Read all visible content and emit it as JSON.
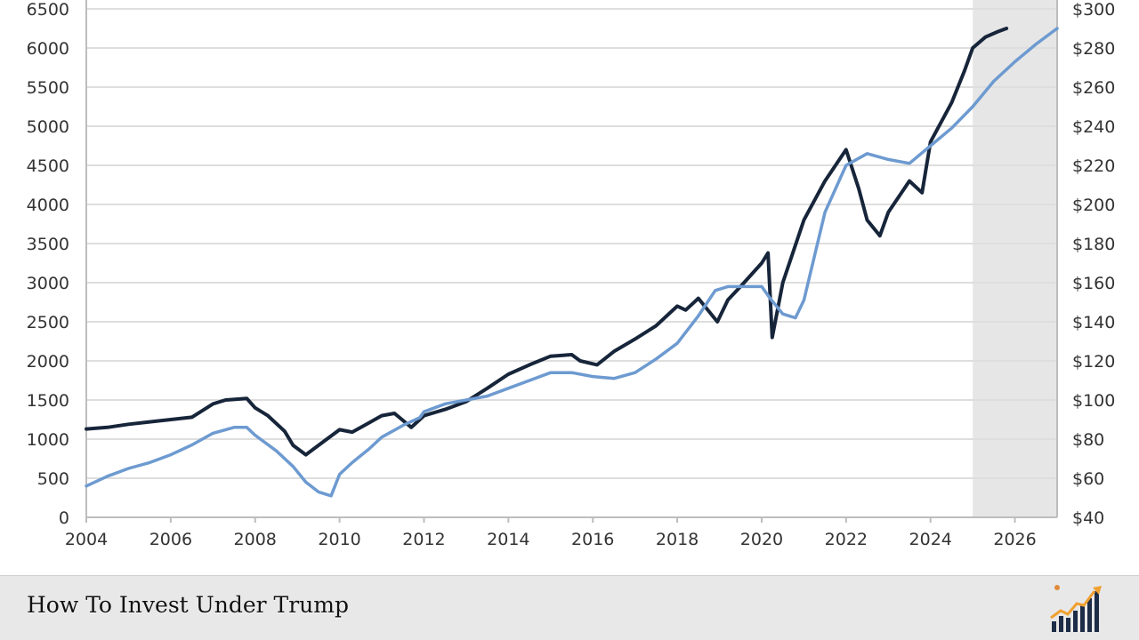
{
  "footer": {
    "title": "How To Invest Under Trump"
  },
  "colors": {
    "index_line": "#17253a",
    "earnings_line": "#6d9ad0",
    "grid": "#dedede",
    "forecast_shade": "#e6e6e6",
    "axis": "#bdbdbd"
  },
  "icons": {
    "logo": "rising-chart-bars-logo"
  },
  "chart_data": {
    "type": "line",
    "title": "",
    "xlabel": "",
    "ylabel_left": "",
    "ylabel_right": "",
    "xlim": [
      2004,
      2027
    ],
    "ylim_left": [
      0,
      6500
    ],
    "ylim_right": [
      40,
      300
    ],
    "x_ticks": [
      "2004",
      "2006",
      "2008",
      "2010",
      "2012",
      "2014",
      "2016",
      "2018",
      "2020",
      "2022",
      "2024",
      "2026"
    ],
    "y_ticks_left": [
      "0",
      "500",
      "1000",
      "1500",
      "2000",
      "2500",
      "3000",
      "3500",
      "4000",
      "4500",
      "5000",
      "5500",
      "6000",
      "6500"
    ],
    "y_ticks_right": [
      "$40",
      "$60",
      "$80",
      "$100",
      "$120",
      "$140",
      "$160",
      "$180",
      "$200",
      "$220",
      "$240",
      "$260",
      "$280",
      "$300"
    ],
    "grid": true,
    "legend": "none",
    "shaded_region": {
      "x_start": 2025.0,
      "x_end": 2027.0
    },
    "series": [
      {
        "axis": "left",
        "color": "#17253a",
        "x": [
          2004.0,
          2004.5,
          2005.0,
          2005.5,
          2006.0,
          2006.5,
          2007.0,
          2007.3,
          2007.8,
          2008.0,
          2008.3,
          2008.7,
          2008.9,
          2009.2,
          2009.5,
          2010.0,
          2010.3,
          2010.6,
          2011.0,
          2011.3,
          2011.7,
          2011.8,
          2012.0,
          2012.5,
          2013.0,
          2013.5,
          2014.0,
          2014.5,
          2015.0,
          2015.5,
          2015.7,
          2016.1,
          2016.5,
          2017.0,
          2017.5,
          2018.0,
          2018.2,
          2018.5,
          2018.95,
          2019.2,
          2019.5,
          2020.0,
          2020.15,
          2020.25,
          2020.5,
          2021.0,
          2021.5,
          2022.0,
          2022.3,
          2022.5,
          2022.8,
          2023.0,
          2023.5,
          2023.8,
          2024.0,
          2024.5,
          2024.8,
          2025.0,
          2025.3,
          2025.6,
          2025.8
        ],
        "y": [
          1130,
          1150,
          1190,
          1220,
          1250,
          1280,
          1450,
          1500,
          1520,
          1400,
          1300,
          1100,
          920,
          800,
          920,
          1120,
          1090,
          1180,
          1300,
          1330,
          1150,
          1200,
          1300,
          1380,
          1480,
          1650,
          1830,
          1950,
          2060,
          2080,
          2000,
          1950,
          2120,
          2280,
          2450,
          2700,
          2650,
          2800,
          2500,
          2780,
          2950,
          3250,
          3380,
          2300,
          3000,
          3800,
          4300,
          4700,
          4200,
          3800,
          3600,
          3900,
          4300,
          4150,
          4800,
          5300,
          5700,
          6000,
          6140,
          6210,
          6250
        ]
      },
      {
        "axis": "right",
        "color": "#6d9ad0",
        "x": [
          2004.0,
          2004.5,
          2005.0,
          2005.5,
          2006.0,
          2006.5,
          2007.0,
          2007.5,
          2007.8,
          2008.0,
          2008.5,
          2008.9,
          2009.2,
          2009.5,
          2009.8,
          2010.0,
          2010.3,
          2010.7,
          2011.0,
          2011.5,
          2011.9,
          2012.0,
          2012.5,
          2013.0,
          2013.5,
          2014.0,
          2014.5,
          2015.0,
          2015.5,
          2016.0,
          2016.5,
          2017.0,
          2017.5,
          2018.0,
          2018.5,
          2018.9,
          2019.2,
          2019.5,
          2020.0,
          2020.2,
          2020.5,
          2020.8,
          2021.0,
          2021.5,
          2022.0,
          2022.5,
          2023.0,
          2023.5,
          2024.0,
          2024.5,
          2025.0,
          2025.5,
          2026.0,
          2026.5,
          2027.0
        ],
        "y": [
          56,
          61,
          65,
          68,
          72,
          77,
          83,
          86,
          86,
          82,
          74,
          66,
          58,
          53,
          51,
          62,
          68,
          75,
          81,
          87,
          91,
          94,
          98,
          100,
          102,
          106,
          110,
          114,
          114,
          112,
          111,
          114,
          121,
          129,
          143,
          156,
          158,
          158,
          158,
          152,
          144,
          142,
          151,
          196,
          220,
          226,
          223,
          221,
          230,
          239,
          250,
          263,
          273,
          282,
          290
        ]
      }
    ]
  }
}
